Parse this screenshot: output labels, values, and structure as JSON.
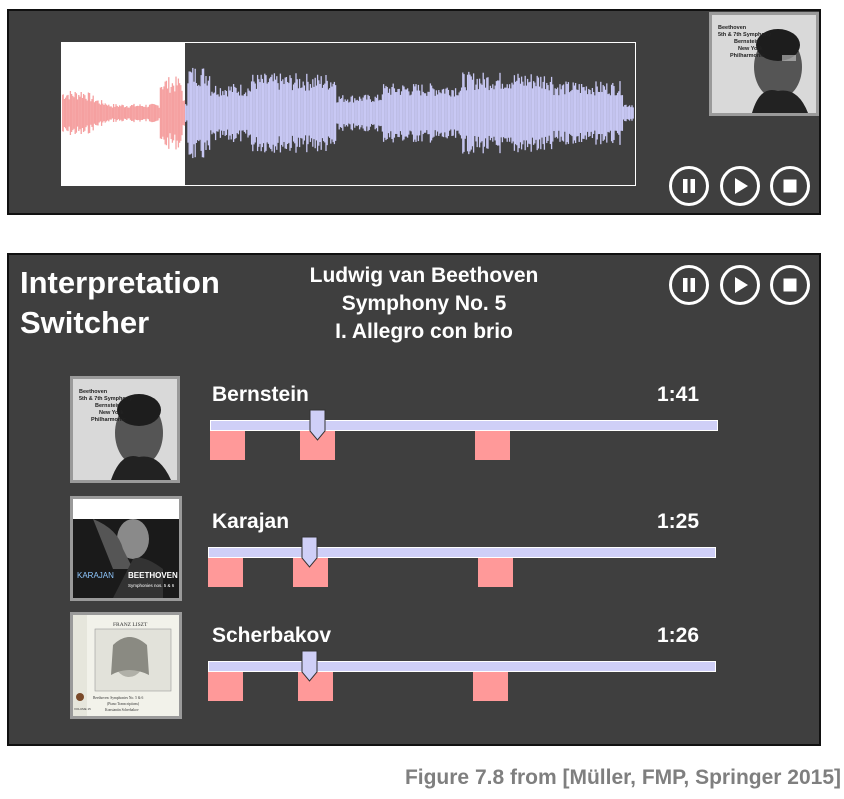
{
  "title": "Interpretation Switcher",
  "piece": {
    "composer": "Ludwig van Beethoven",
    "work": "Symphony No. 5",
    "movement": "I. Allegro con brio"
  },
  "top_player": {
    "album": {
      "lines": [
        "Beethoven",
        "5th & 7th Symphony",
        "Bernstein",
        "New York",
        "Philharmonic"
      ]
    },
    "playback_progress": 0.214
  },
  "controls": {
    "pause_icon": "pause-icon",
    "play_icon": "play-icon",
    "stop_icon": "stop-icon"
  },
  "performances": [
    {
      "performer": "Bernstein",
      "time": "1:41",
      "album_lines": [
        "Beethoven",
        "5th & 7th Symphony",
        "Bernstein",
        "New York",
        "Philharmonic"
      ],
      "position": 0.19,
      "markers": [
        0.0,
        0.19,
        0.56
      ]
    },
    {
      "performer": "Karajan",
      "time": "1:25",
      "album_lines": [
        "KARAJAN",
        "BEETHOVEN",
        "Symphonies nos. 5 & 6"
      ],
      "position": 0.18,
      "markers": [
        0.0,
        0.18,
        0.57
      ]
    },
    {
      "performer": "Scherbakov",
      "time": "1:26",
      "album_lines": [
        "FRANZ LISZT",
        "Beethoven: Symphonies No. 5 & 6",
        "(Piano Transcriptions)",
        "Konstantin Scherbakov",
        "VOLUME 15"
      ],
      "position": 0.18,
      "markers": [
        0.0,
        0.19,
        0.56
      ]
    }
  ],
  "colors": {
    "panel": "#3f3f3f",
    "played_waveform": "#f5a0a0",
    "unplayed_waveform": "#c8c8f4",
    "marker": "#ff9999",
    "track": "#cfcff7"
  },
  "caption": "Figure 7.8 from [Müller, FMP, Springer 2015]"
}
